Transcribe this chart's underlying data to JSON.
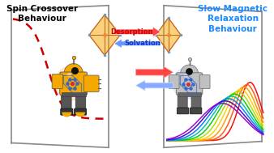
{
  "title_left": "Spin Crossover\nBehaviour",
  "title_right": "Slow Magnetic\nRelaxation\nBehaviour",
  "arrow_desorption": "Desorption",
  "arrow_solvation": "Solvation",
  "bg_color": "#ffffff",
  "title_left_color": "#000000",
  "title_right_color": "#1a88ff",
  "desorption_fill": "#ff4444",
  "desorption_edge": "#cc0000",
  "solvation_fill": "#6699ff",
  "solvation_edge": "#2244cc",
  "robot_left_color": "#f5a800",
  "robot_right_color": "#c0c0c0",
  "robot_dark": "#555555",
  "robot_foot": "#333333",
  "crystal_face": "#f5a500",
  "crystal_edge": "#c86010",
  "crystal_node": "#6699cc",
  "crystal_center": "#ee8833",
  "chest_blue": "#3366cc",
  "red_curve_color": "#cc0000",
  "panel_color": "#888888",
  "big_arrow_right": "#ff3333",
  "big_arrow_left": "#88aaff",
  "curve_colors": [
    "#ff0000",
    "#ff5500",
    "#ff9900",
    "#ffcc00",
    "#aadd00",
    "#00cc00",
    "#00bbaa",
    "#0077ff",
    "#4400cc",
    "#9900cc"
  ],
  "figsize": [
    3.38,
    1.89
  ],
  "dpi": 100
}
